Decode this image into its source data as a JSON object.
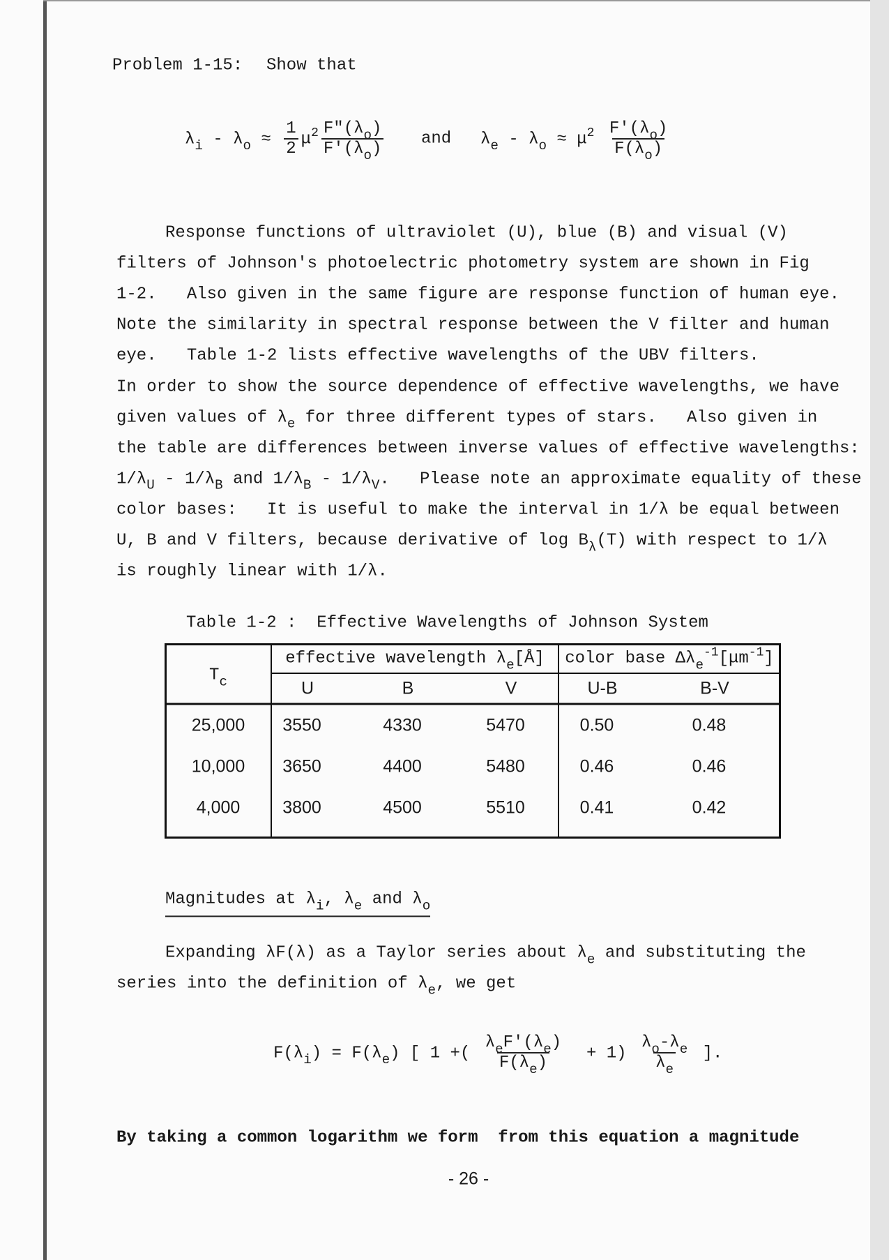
{
  "problem": {
    "label": "Problem 1-15:",
    "text": "Show that"
  },
  "equation1": [
    "λ",
    {
      "sub": "i"
    },
    " - λ",
    {
      "sub": "o"
    },
    " ≈ ",
    {
      "frac": {
        "num": [
          "1"
        ],
        "den": [
          "2"
        ]
      }
    },
    "μ",
    {
      "sup": "2"
    },
    {
      "frac": {
        "num": [
          "F\"(λ",
          {
            "sub": "o"
          },
          ")"
        ],
        "den": [
          "F'(λ",
          {
            "sub": "o"
          },
          ")"
        ]
      }
    }
  ],
  "equation_join": "and",
  "equation2": [
    "λ",
    {
      "sub": "e"
    },
    " - λ",
    {
      "sub": "o"
    },
    " ≈ μ",
    {
      "sup": "2"
    },
    " ",
    {
      "frac": {
        "num": [
          "F'(λ",
          {
            "sub": "o"
          },
          ")"
        ],
        "den": [
          "F(λ",
          {
            "sub": "o"
          },
          ")"
        ]
      }
    }
  ],
  "paragraph1": [
    [
      "Response functions of ultraviolet (U), blue (B) and visual (V)"
    ],
    [
      "filters of Johnson's photoelectric photometry system are shown in Fig"
    ],
    [
      "1-2.   Also given in the same figure are response function of human eye."
    ],
    [
      "Note the similarity in spectral response between the V filter and human"
    ],
    [
      "eye.   Table 1-2 lists effective wavelengths of the UBV filters."
    ],
    [
      "In order to show the source dependence of effective wavelengths, we have"
    ],
    [
      "given values of λ",
      {
        "sub": "e"
      },
      " for three different types of stars.   Also given in"
    ],
    [
      "the table are differences between inverse values of effective wavelengths:"
    ],
    [
      "1/λ",
      {
        "sub": "U"
      },
      " - 1/λ",
      {
        "sub": "B"
      },
      " and 1/λ",
      {
        "sub": "B"
      },
      " - 1/λ",
      {
        "sub": "V"
      },
      ".   Please note an approximate equality of these"
    ],
    [
      "color bases:   It is useful to make the interval in 1/λ be equal between"
    ],
    [
      "U, B and V filters, because derivative of log B",
      {
        "sub": "λ"
      },
      "(T) with respect to 1/λ"
    ],
    [
      "is roughly linear with 1/λ."
    ]
  ],
  "table": {
    "title": "Table 1-2 :  Effective Wavelengths of Johnson System",
    "corner": [
      "T",
      {
        "sub": "c"
      }
    ],
    "group_headers": [
      [
        "effective wavelength λ",
        {
          "sub": "e"
        },
        "[Å]"
      ],
      [
        "color base Δλ",
        {
          "sub": "e"
        },
        {
          "sup": "-1"
        },
        "[μm",
        {
          "sup": "-1"
        },
        "]"
      ]
    ],
    "sub_headers": [
      "U",
      "B",
      "V",
      "U-B",
      "B-V"
    ],
    "rows": [
      [
        "25,000",
        "3550",
        "4330",
        "5470",
        "0.50",
        "0.48"
      ],
      [
        "10,000",
        "3650",
        "4400",
        "5480",
        "0.46",
        "0.46"
      ],
      [
        "4,000",
        "3800",
        "4500",
        "5510",
        "0.41",
        "0.42"
      ]
    ]
  },
  "section_heading": [
    "Magnitudes at λ",
    {
      "sub": "i"
    },
    ", λ",
    {
      "sub": "e"
    },
    " and λ",
    {
      "sub": "o"
    }
  ],
  "paragraph2": [
    [
      "Expanding λF(λ) as a Taylor series about λ",
      {
        "sub": "e"
      },
      " and substituting the"
    ],
    [
      "series into the definition of λ",
      {
        "sub": "e"
      },
      ", we get"
    ]
  ],
  "equation3": [
    "F(λ",
    {
      "sub": "i"
    },
    ") = F(λ",
    {
      "sub": "e"
    },
    ") [ 1 +( ",
    {
      "frac": {
        "num": [
          "λ",
          {
            "sub": "e"
          },
          "F'(λ",
          {
            "sub": "e"
          },
          ")"
        ],
        "den": [
          "F(λ",
          {
            "sub": "e"
          },
          ")"
        ]
      }
    },
    "  + 1) ",
    {
      "frac": {
        "num": [
          "λ",
          {
            "sub": "o"
          },
          "-λ",
          {
            "sub": "e"
          }
        ],
        "den": [
          "λ",
          {
            "sub": "e"
          }
        ]
      }
    },
    " ]."
  ],
  "closing": "By taking a common logarithm we form  from this equation a magnitude",
  "page_number": "- 26 -"
}
